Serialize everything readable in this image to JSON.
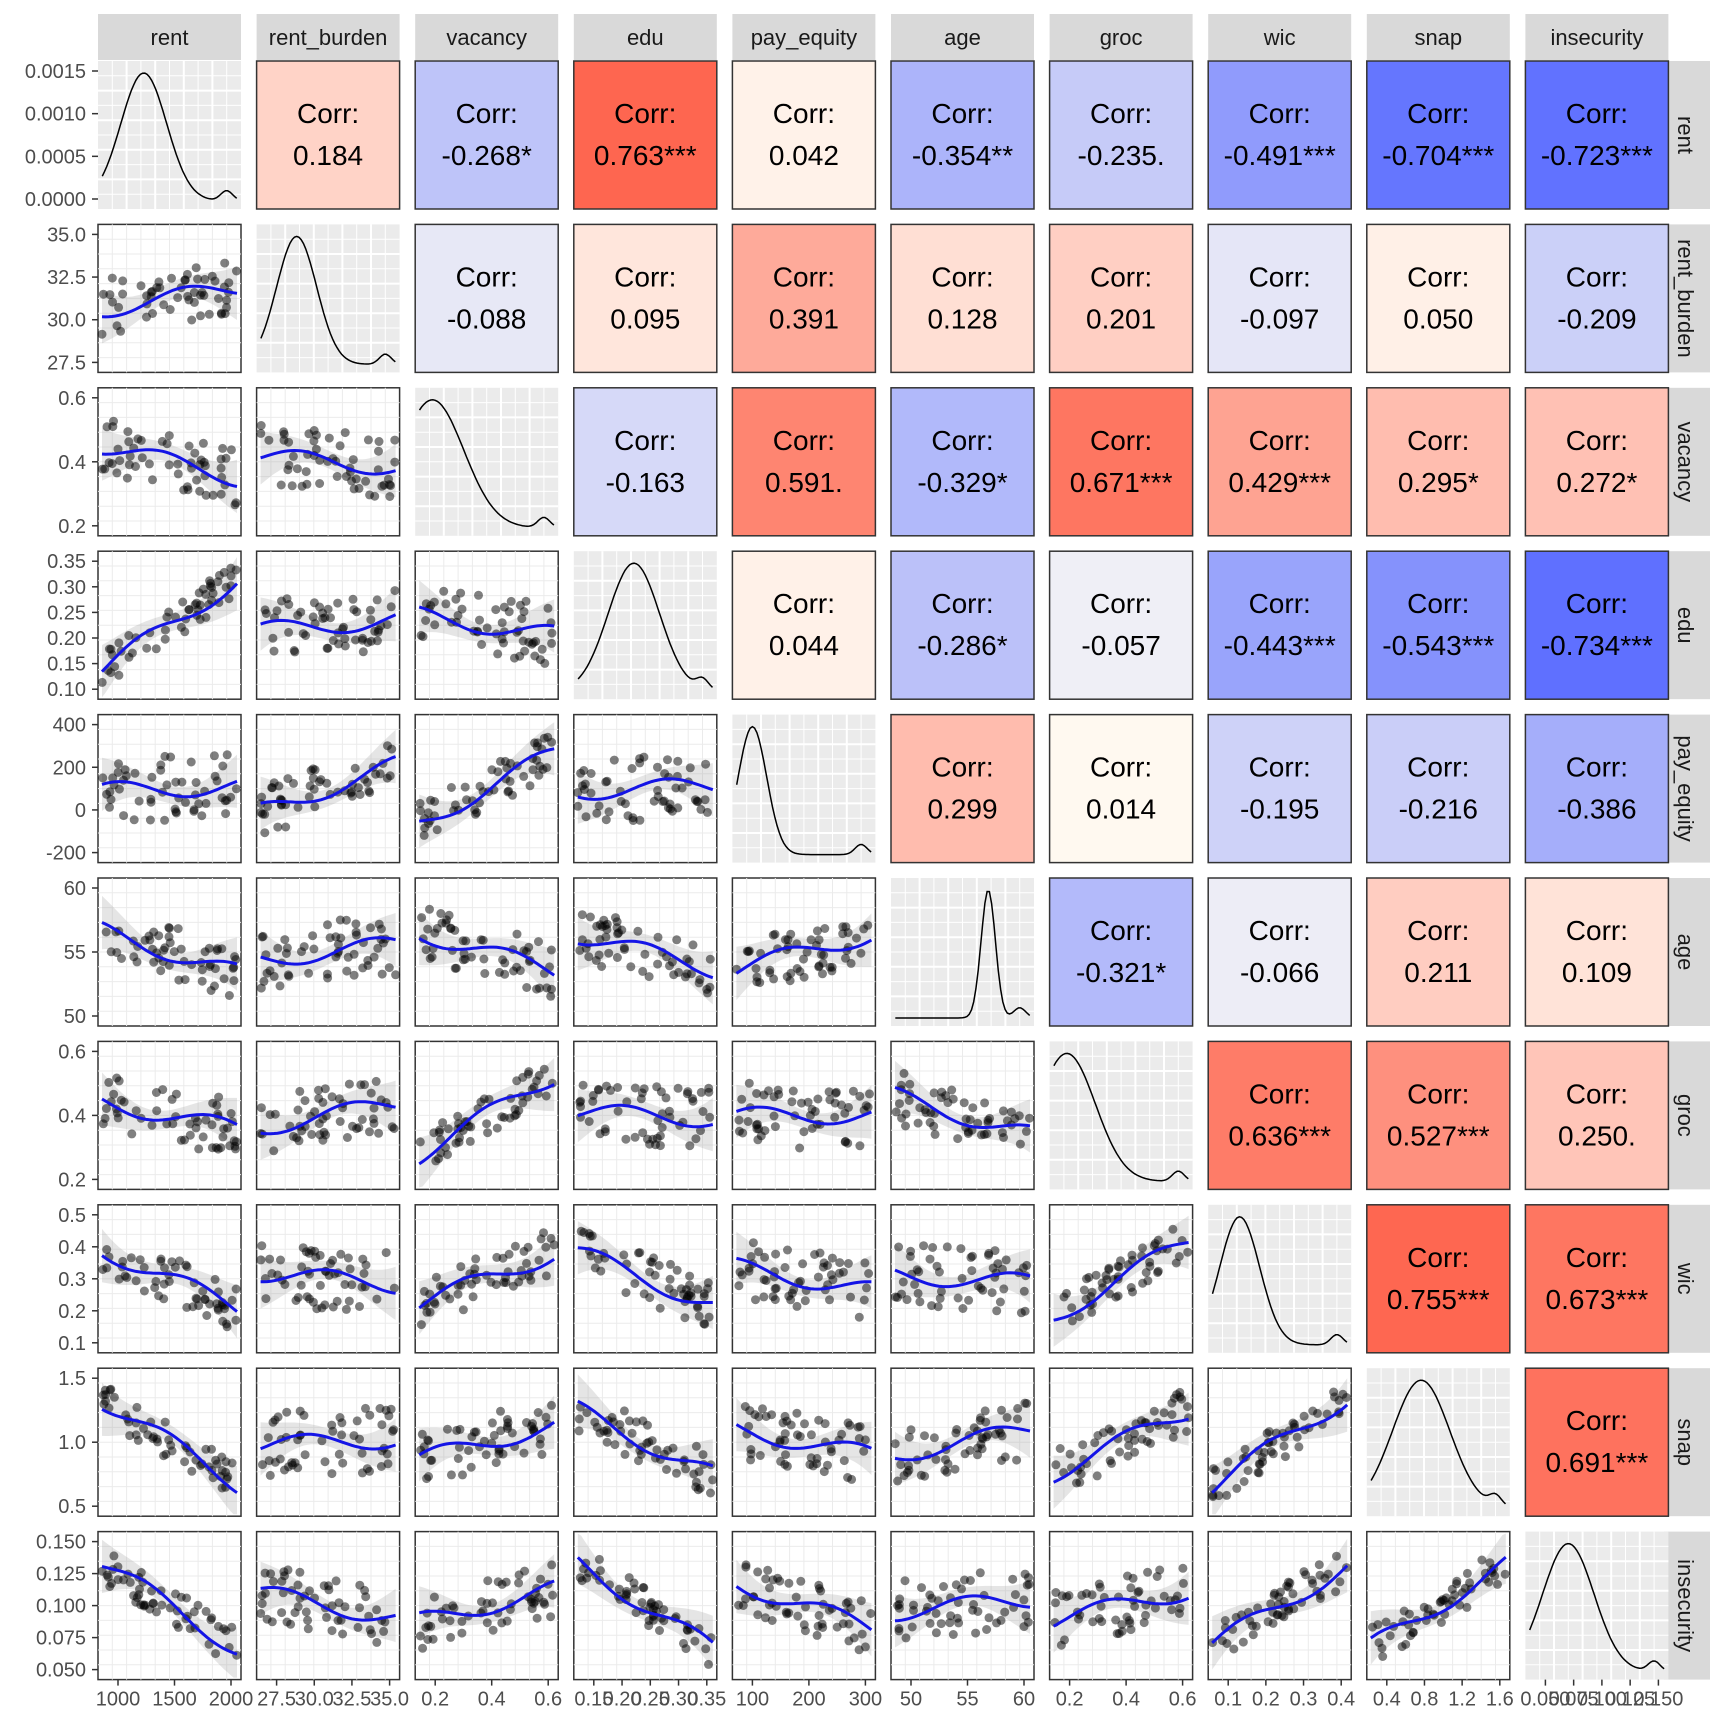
{
  "chart_data": {
    "type": "scatter_matrix",
    "variables": [
      "rent",
      "rent_burden",
      "vacancy",
      "edu",
      "pay_equity",
      "age",
      "groc",
      "wic",
      "snap",
      "insecurity"
    ],
    "corr_label": "Corr:",
    "correlations": [
      {
        "row": 0,
        "col": 1,
        "value": 0.184,
        "label": "0.184"
      },
      {
        "row": 0,
        "col": 2,
        "value": -0.268,
        "label": "-0.268*"
      },
      {
        "row": 0,
        "col": 3,
        "value": 0.763,
        "label": "0.763***"
      },
      {
        "row": 0,
        "col": 4,
        "value": 0.042,
        "label": "0.042"
      },
      {
        "row": 0,
        "col": 5,
        "value": -0.354,
        "label": "-0.354**"
      },
      {
        "row": 0,
        "col": 6,
        "value": -0.235,
        "label": "-0.235."
      },
      {
        "row": 0,
        "col": 7,
        "value": -0.491,
        "label": "-0.491***"
      },
      {
        "row": 0,
        "col": 8,
        "value": -0.704,
        "label": "-0.704***"
      },
      {
        "row": 0,
        "col": 9,
        "value": -0.723,
        "label": "-0.723***"
      },
      {
        "row": 1,
        "col": 2,
        "value": -0.088,
        "label": "-0.088"
      },
      {
        "row": 1,
        "col": 3,
        "value": 0.095,
        "label": "0.095"
      },
      {
        "row": 1,
        "col": 4,
        "value": 0.391,
        "label": "0.391"
      },
      {
        "row": 1,
        "col": 5,
        "value": 0.128,
        "label": "0.128"
      },
      {
        "row": 1,
        "col": 6,
        "value": 0.201,
        "label": "0.201"
      },
      {
        "row": 1,
        "col": 7,
        "value": -0.097,
        "label": "-0.097"
      },
      {
        "row": 1,
        "col": 8,
        "value": 0.05,
        "label": "0.050"
      },
      {
        "row": 1,
        "col": 9,
        "value": -0.209,
        "label": "-0.209"
      },
      {
        "row": 2,
        "col": 3,
        "value": -0.163,
        "label": "-0.163"
      },
      {
        "row": 2,
        "col": 4,
        "value": 0.591,
        "label": "0.591."
      },
      {
        "row": 2,
        "col": 5,
        "value": -0.329,
        "label": "-0.329*"
      },
      {
        "row": 2,
        "col": 6,
        "value": 0.671,
        "label": "0.671***"
      },
      {
        "row": 2,
        "col": 7,
        "value": 0.429,
        "label": "0.429***"
      },
      {
        "row": 2,
        "col": 8,
        "value": 0.295,
        "label": "0.295*"
      },
      {
        "row": 2,
        "col": 9,
        "value": 0.272,
        "label": "0.272*"
      },
      {
        "row": 3,
        "col": 4,
        "value": 0.044,
        "label": "0.044"
      },
      {
        "row": 3,
        "col": 5,
        "value": -0.286,
        "label": "-0.286*"
      },
      {
        "row": 3,
        "col": 6,
        "value": -0.057,
        "label": "-0.057"
      },
      {
        "row": 3,
        "col": 7,
        "value": -0.443,
        "label": "-0.443***"
      },
      {
        "row": 3,
        "col": 8,
        "value": -0.543,
        "label": "-0.543***"
      },
      {
        "row": 3,
        "col": 9,
        "value": -0.734,
        "label": "-0.734***"
      },
      {
        "row": 4,
        "col": 5,
        "value": 0.299,
        "label": "0.299"
      },
      {
        "row": 4,
        "col": 6,
        "value": 0.014,
        "label": "0.014"
      },
      {
        "row": 4,
        "col": 7,
        "value": -0.195,
        "label": "-0.195"
      },
      {
        "row": 4,
        "col": 8,
        "value": -0.216,
        "label": "-0.216"
      },
      {
        "row": 4,
        "col": 9,
        "value": -0.386,
        "label": "-0.386"
      },
      {
        "row": 5,
        "col": 6,
        "value": -0.321,
        "label": "-0.321*"
      },
      {
        "row": 5,
        "col": 7,
        "value": -0.066,
        "label": "-0.066"
      },
      {
        "row": 5,
        "col": 8,
        "value": 0.211,
        "label": "0.211"
      },
      {
        "row": 5,
        "col": 9,
        "value": 0.109,
        "label": "0.109"
      },
      {
        "row": 6,
        "col": 7,
        "value": 0.636,
        "label": "0.636***"
      },
      {
        "row": 6,
        "col": 8,
        "value": 0.527,
        "label": "0.527***"
      },
      {
        "row": 6,
        "col": 9,
        "value": 0.25,
        "label": "0.250."
      },
      {
        "row": 7,
        "col": 8,
        "value": 0.755,
        "label": "0.755***"
      },
      {
        "row": 7,
        "col": 9,
        "value": 0.673,
        "label": "0.673***"
      },
      {
        "row": 8,
        "col": 9,
        "value": 0.691,
        "label": "0.691***"
      }
    ],
    "y_tick_labels": [
      [
        "0.0015",
        "0.0010",
        "0.0005",
        "0.0000"
      ],
      [
        "35.0",
        "32.5",
        "30.0",
        "27.5"
      ],
      [
        "0.6",
        "0.4",
        "0.2"
      ],
      [
        "0.35",
        "0.30",
        "0.25",
        "0.20",
        "0.15",
        "0.10"
      ],
      [
        "400",
        "200",
        "0",
        "-200"
      ],
      [
        "60",
        "55",
        "50"
      ],
      [
        "0.6",
        "0.4",
        "0.2"
      ],
      [
        "0.5",
        "0.4",
        "0.3",
        "0.2",
        "0.1"
      ],
      [
        "1.5",
        "1.0",
        "0.5"
      ],
      [
        "0.150",
        "0.125",
        "0.100",
        "0.075",
        "0.050"
      ]
    ],
    "x_tick_labels": [
      [
        "1000",
        "1500",
        "2000"
      ],
      [
        "27.5",
        "30.0",
        "32.5",
        "35.0"
      ],
      [
        "0.2",
        "0.4",
        "0.6"
      ],
      [
        "0.15",
        "0.20",
        "0.25",
        "0.30",
        "0.35"
      ],
      [
        "100",
        "200",
        "300"
      ],
      [
        "50",
        "55",
        "60"
      ],
      [
        "0.2",
        "0.4",
        "0.6"
      ],
      [
        "0.1",
        "0.2",
        "0.3",
        "0.4"
      ],
      [
        "0.4",
        "0.8",
        "1.2",
        "1.6"
      ],
      [
        "0.050",
        "0.075",
        "0.100",
        "0.125",
        "0.150"
      ]
    ],
    "diagonal": "density",
    "lower": "scatter with loess smooth and confidence band",
    "upper": "correlation coefficient tiles",
    "colors": {
      "negative": "#5a6cff",
      "neutral": "#fffdf5",
      "positive": "#fe6650",
      "smooth_line": "#1414e6",
      "points": "#000000",
      "strip_bg": "#d9d9d9",
      "panel_bg": "#ebebeb"
    }
  }
}
